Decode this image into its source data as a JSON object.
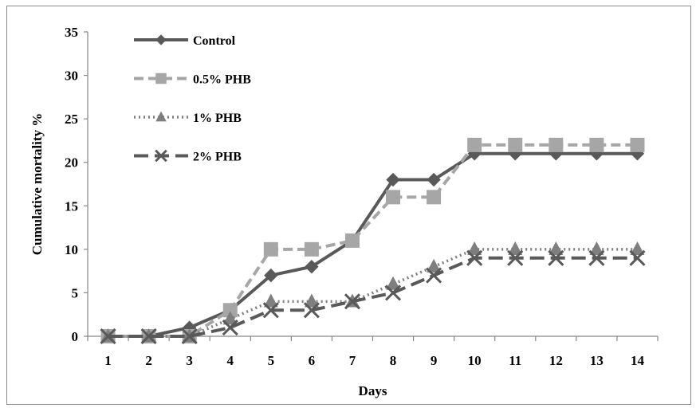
{
  "chart_data": {
    "type": "line",
    "title": "",
    "xlabel": "Days",
    "ylabel": "Cumulative mortality %",
    "ylim": [
      0,
      35
    ],
    "yticks": [
      0,
      5,
      10,
      15,
      20,
      25,
      30,
      35
    ],
    "categories": [
      "1",
      "2",
      "3",
      "4",
      "5",
      "6",
      "7",
      "8",
      "9",
      "10",
      "11",
      "12",
      "13",
      "14"
    ],
    "grid": false,
    "legend_position": "top-left",
    "series": [
      {
        "name": "Control",
        "color": "#595959",
        "dash": "solid",
        "marker": "diamond",
        "values": [
          0,
          0,
          1,
          3,
          7,
          8,
          11,
          18,
          18,
          21,
          21,
          21,
          21,
          21
        ]
      },
      {
        "name": "0.5% PHB",
        "color": "#a6a6a6",
        "dash": "dashed",
        "marker": "square",
        "values": [
          0,
          0,
          0,
          3,
          10,
          10,
          11,
          16,
          16,
          22,
          22,
          22,
          22,
          22
        ]
      },
      {
        "name": "1% PHB",
        "color": "#7f7f7f",
        "dash": "dotted",
        "marker": "triangle",
        "values": [
          0,
          0,
          0,
          2,
          4,
          4,
          4,
          6,
          8,
          10,
          10,
          10,
          10,
          10
        ]
      },
      {
        "name": "2% PHB",
        "color": "#595959",
        "dash": "longdash",
        "marker": "x",
        "values": [
          0,
          0,
          0,
          1,
          3,
          3,
          4,
          5,
          7,
          9,
          9,
          9,
          9,
          9
        ]
      }
    ]
  }
}
